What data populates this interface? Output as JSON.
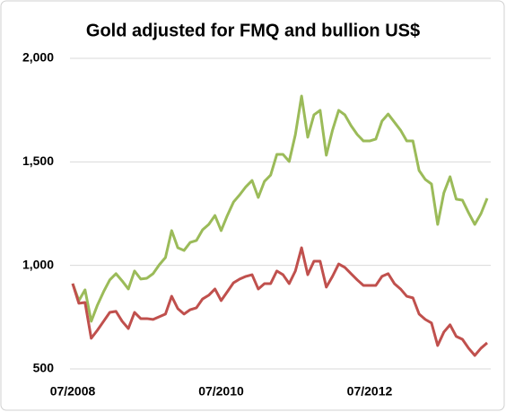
{
  "chart_data": {
    "type": "line",
    "title": "Gold adjusted for FMQ and bullion US$",
    "categories": [
      "07/2008",
      null,
      null,
      null,
      null,
      null,
      null,
      null,
      null,
      null,
      null,
      null,
      null,
      null,
      null,
      null,
      null,
      null,
      null,
      null,
      null,
      null,
      null,
      null,
      "07/2010",
      null,
      null,
      null,
      null,
      null,
      null,
      null,
      null,
      null,
      null,
      null,
      null,
      null,
      null,
      null,
      null,
      null,
      null,
      null,
      null,
      null,
      null,
      null,
      "07/2012",
      null,
      null,
      null,
      null,
      null,
      null,
      null,
      null,
      null,
      null,
      null,
      null,
      null,
      null,
      null,
      null,
      null,
      null,
      null
    ],
    "series": [
      {
        "color": "#9bbb59",
        "values": [
          912,
          830,
          882,
          730,
          808,
          873,
          930,
          960,
          925,
          886,
          973,
          934,
          938,
          960,
          1003,
          1038,
          1168,
          1085,
          1072,
          1111,
          1120,
          1172,
          1198,
          1241,
          1168,
          1241,
          1306,
          1341,
          1380,
          1410,
          1328,
          1406,
          1436,
          1536,
          1536,
          1502,
          1632,
          1818,
          1619,
          1727,
          1749,
          1532,
          1653,
          1749,
          1727,
          1675,
          1632,
          1601,
          1601,
          1610,
          1697,
          1731,
          1692,
          1653,
          1601,
          1601,
          1458,
          1415,
          1393,
          1198,
          1350,
          1428,
          1320,
          1315,
          1254,
          1198,
          1250,
          1324
        ]
      },
      {
        "color": "#c0504d",
        "values": [
          912,
          817,
          821,
          648,
          687,
          730,
          773,
          778,
          730,
          695,
          773,
          743,
          743,
          739,
          752,
          765,
          851,
          791,
          765,
          786,
          795,
          838,
          856,
          886,
          830,
          873,
          916,
          934,
          947,
          955,
          886,
          912,
          912,
          973,
          955,
          912,
          973,
          1085,
          955,
          1020,
          1020,
          895,
          947,
          1007,
          990,
          960,
          930,
          903,
          903,
          903,
          947,
          960,
          912,
          886,
          851,
          843,
          765,
          739,
          722,
          613,
          678,
          713,
          657,
          643,
          600,
          565,
          600,
          626
        ]
      }
    ],
    "ylim": [
      500,
      2000
    ],
    "yticks": [
      500,
      {
        "value": 1000,
        "label": "1,000"
      },
      {
        "value": 1500,
        "label": "1,500"
      },
      {
        "value": 2000,
        "label": "2,000"
      }
    ],
    "grid": true
  }
}
